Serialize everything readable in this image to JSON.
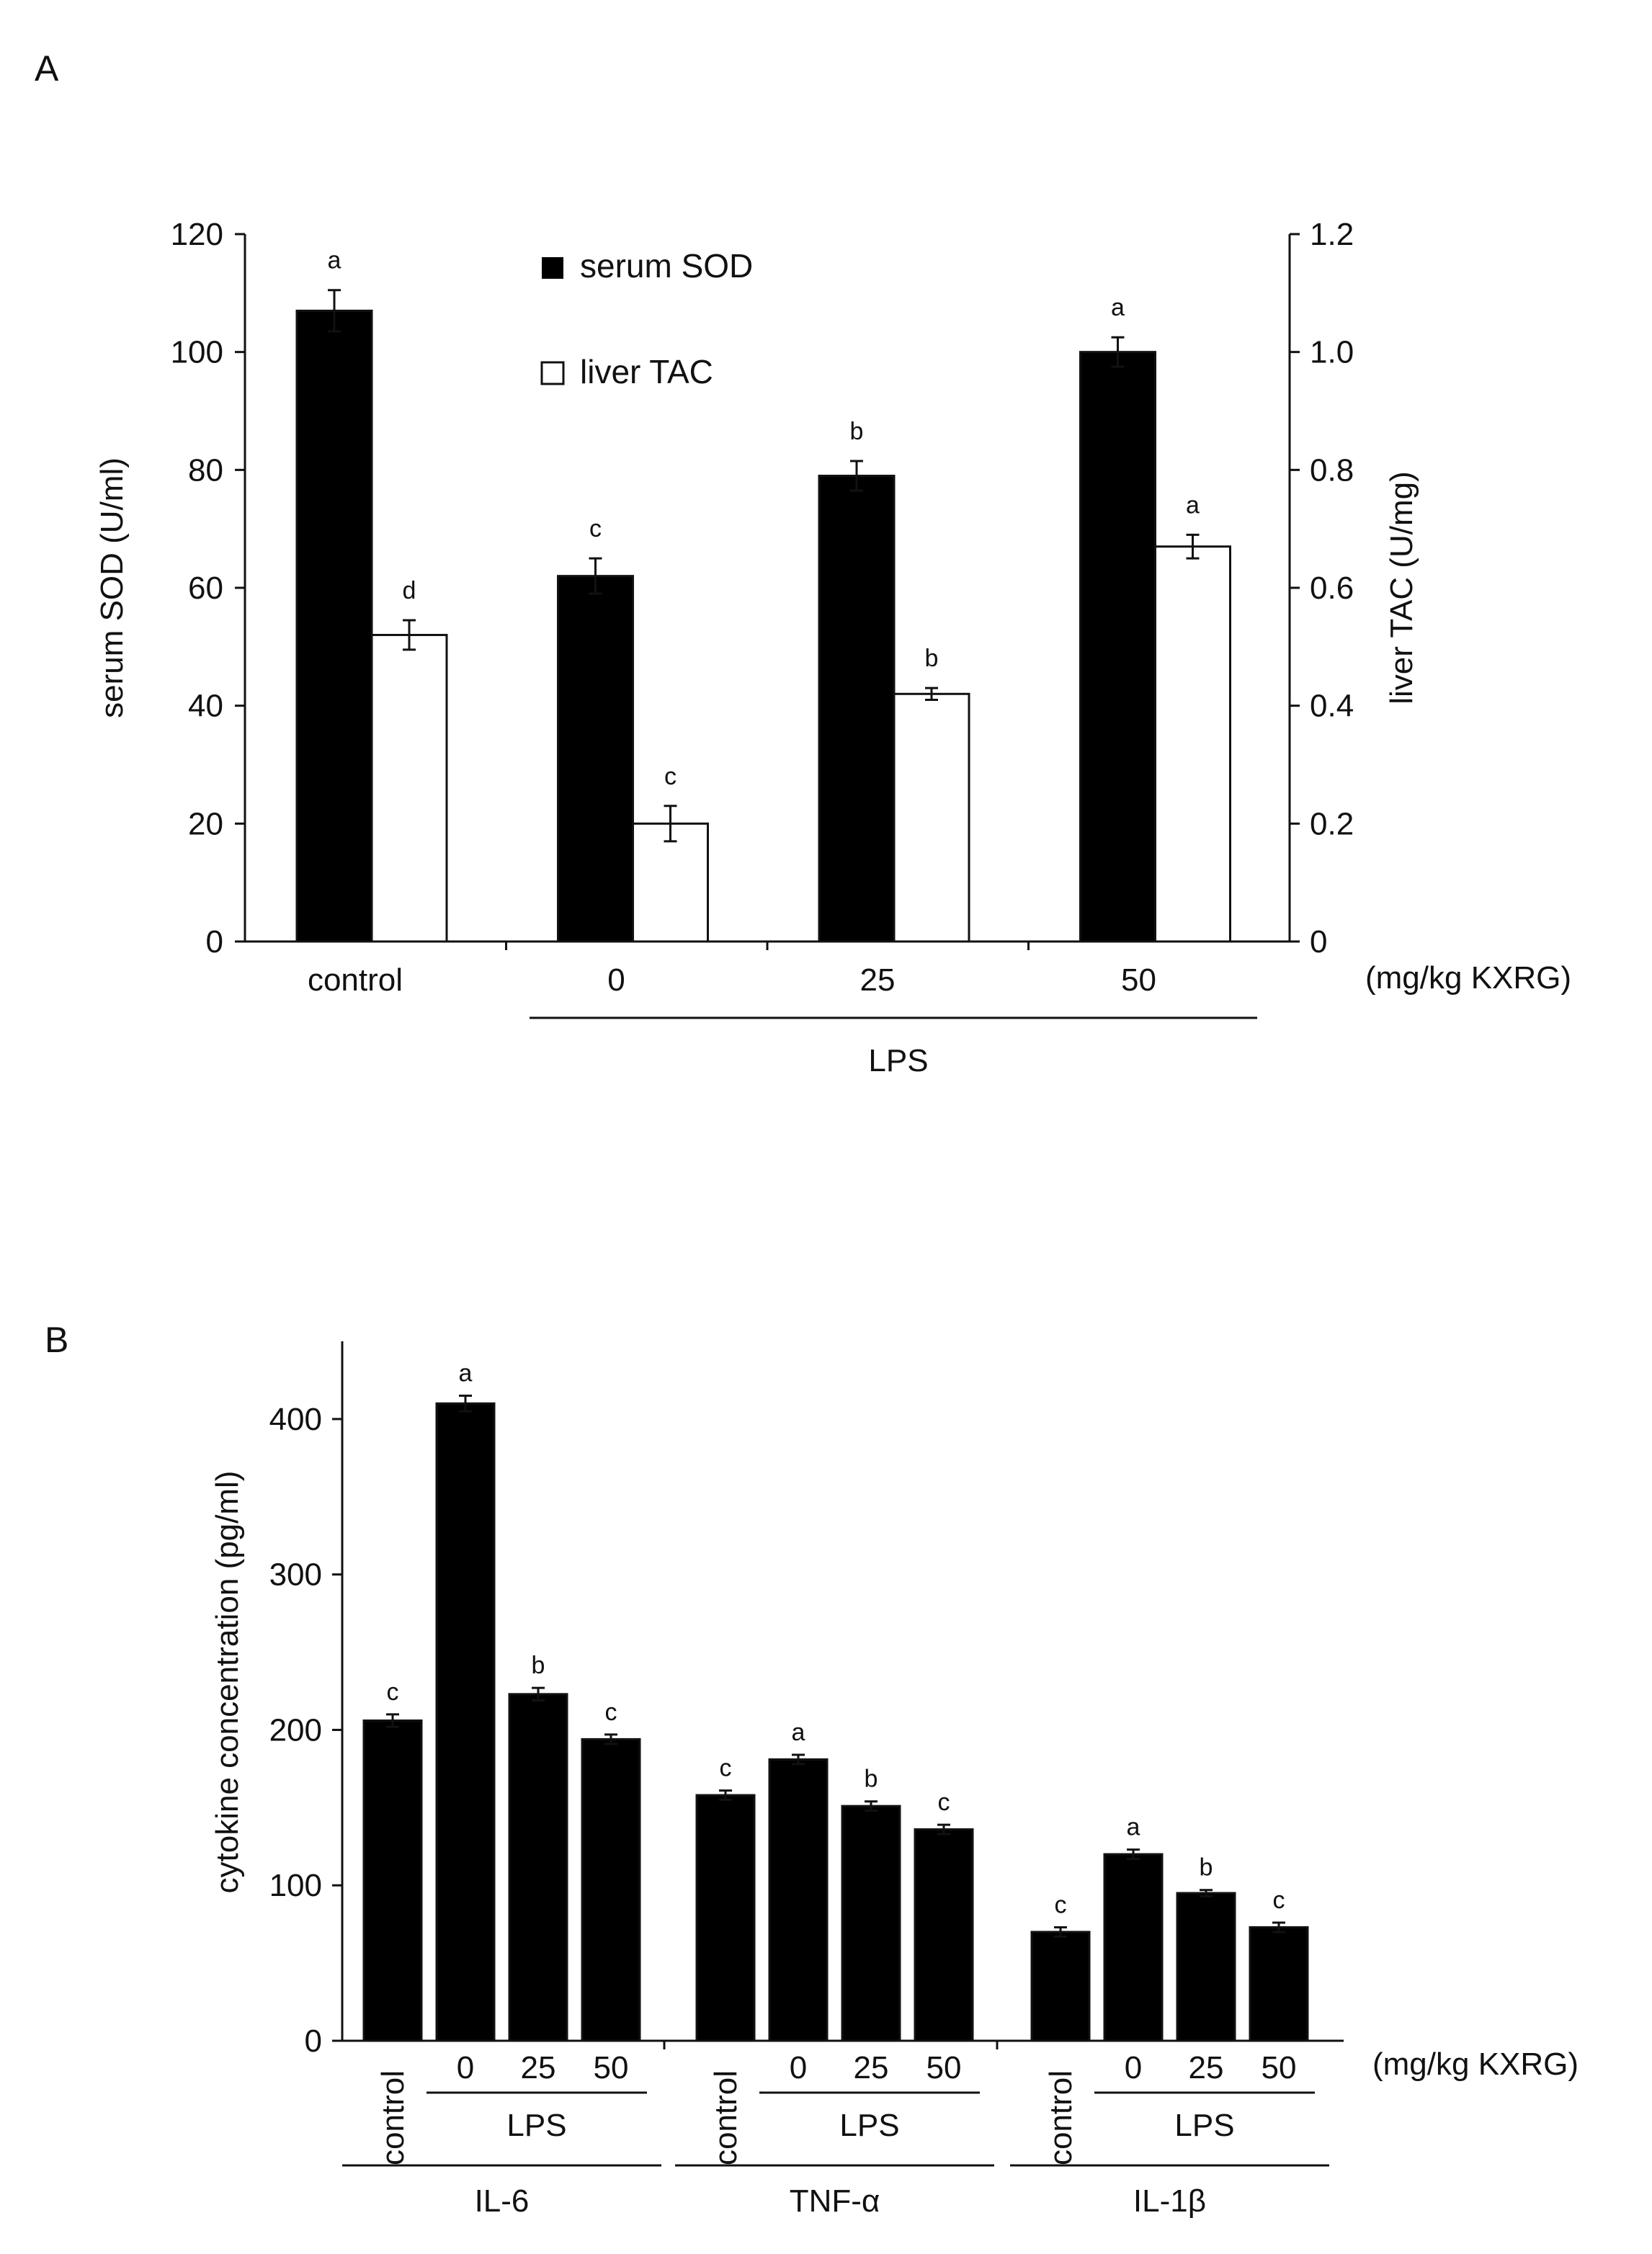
{
  "chart_data": [
    {
      "panel_label": "A",
      "type": "bar",
      "categories": [
        "control",
        "0",
        "25",
        "50"
      ],
      "group_label": "LPS",
      "unit_note": "(mg/kg KXRG)",
      "ylabel_left": "serum SOD (U/ml)",
      "ylabel_right": "liver TAC (U/mg)",
      "ylim_left": [
        0,
        120
      ],
      "ylim_right": [
        0,
        1.2
      ],
      "yticks_left": [
        "0",
        "20",
        "40",
        "60",
        "80",
        "100",
        "120"
      ],
      "yticks_right": [
        "0",
        "0.2",
        "0.4",
        "0.6",
        "0.8",
        "1.0",
        "1.2"
      ],
      "series": [
        {
          "name": "serum SOD",
          "axis": "left",
          "color": "#000000",
          "values": [
            107,
            62,
            79,
            100
          ],
          "errors": [
            3.5,
            3,
            2.5,
            2.5
          ],
          "letters": [
            "a",
            "c",
            "b",
            "a"
          ]
        },
        {
          "name": "liver TAC",
          "axis": "right",
          "color": "#ffffff",
          "values": [
            0.52,
            0.2,
            0.42,
            0.67
          ],
          "errors": [
            0.025,
            0.03,
            0.01,
            0.02
          ],
          "letters": [
            "d",
            "c",
            "b",
            "a"
          ]
        }
      ]
    },
    {
      "panel_label": "B",
      "type": "bar",
      "ylabel": "cytokine concentration (pg/ml)",
      "ylim": [
        0,
        450
      ],
      "yticks": [
        "0",
        "100",
        "200",
        "300",
        "400"
      ],
      "unit_note": "(mg/kg KXRG)",
      "groups": [
        {
          "name": "IL-6",
          "categories": [
            "control",
            "0",
            "25",
            "50"
          ],
          "lps_label": "LPS",
          "values": [
            206,
            410,
            223,
            194
          ],
          "errors": [
            4,
            5,
            4,
            3
          ],
          "letters": [
            "c",
            "a",
            "b",
            "c"
          ]
        },
        {
          "name": "TNF-α",
          "categories": [
            "control",
            "0",
            "25",
            "50"
          ],
          "lps_label": "LPS",
          "values": [
            158,
            181,
            151,
            136
          ],
          "errors": [
            3,
            3,
            3,
            3
          ],
          "letters": [
            "c",
            "a",
            "b",
            "c"
          ]
        },
        {
          "name": "IL-1β",
          "categories": [
            "control",
            "0",
            "25",
            "50"
          ],
          "lps_label": "LPS",
          "values": [
            70,
            120,
            95,
            73
          ],
          "errors": [
            3,
            3,
            2,
            3
          ],
          "letters": [
            "c",
            "a",
            "b",
            "c"
          ]
        }
      ]
    }
  ]
}
